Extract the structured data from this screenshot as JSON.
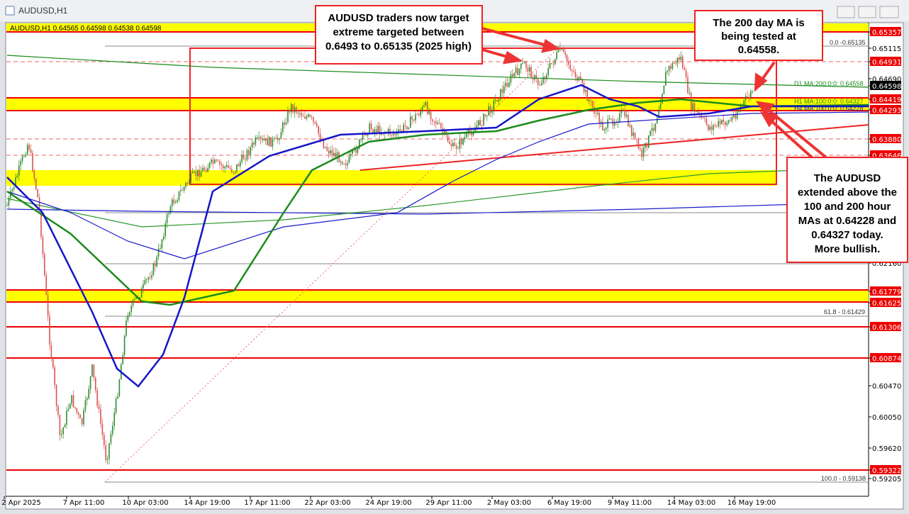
{
  "window": {
    "title": "AUDUSD,H1"
  },
  "chart": {
    "header": "AUDUSD,H1  0.64565 0.64598 0.64538 0.64598"
  },
  "price_axis": [
    "0.65357",
    "0.65115",
    "0.64931",
    "0.64690",
    "0.64598",
    "0.64419",
    "0.64293",
    "0.63880",
    "0.63646",
    "0.62160",
    "0.61779",
    "0.61625",
    "0.61306",
    "0.60874",
    "0.60470",
    "0.60050",
    "0.59620",
    "0.59322",
    "0.59205"
  ],
  "time_axis": [
    "2 Apr 2025",
    "7 Apr 11:00",
    "10 Apr 03:00",
    "14 Apr 19:00",
    "17 Apr 11:00",
    "22 Apr 03:00",
    "24 Apr 19:00",
    "29 Apr 11:00",
    "2 May 03:00",
    "6 May 19:00",
    "9 May 11:00",
    "14 May 03:00",
    "16 May 19:00"
  ],
  "indicators": [
    "D1 MA:200:0:0: 0.64558",
    "H1 MA:100:0:0: 0.64327",
    "H4 MA:100:0:0: 0.64228"
  ],
  "fib_labels": [
    "0.0 -0.65135",
    "61.8 - 0.61429",
    "100.0 - 0.59138"
  ],
  "annotations": [
    {
      "lines": [
        "AUDUSD traders now target",
        "extreme targeted between",
        "0.6493 to 0.65135 (2025 high)"
      ]
    },
    {
      "lines": [
        "The 200 day MA is",
        "being tested at",
        "0.64558."
      ]
    },
    {
      "lines": [
        "The AUDUSD",
        "extended above the",
        "100 and 200 hour",
        "MAs at 0.64228 and",
        "0.64327 today.",
        "More bullish."
      ]
    }
  ]
}
